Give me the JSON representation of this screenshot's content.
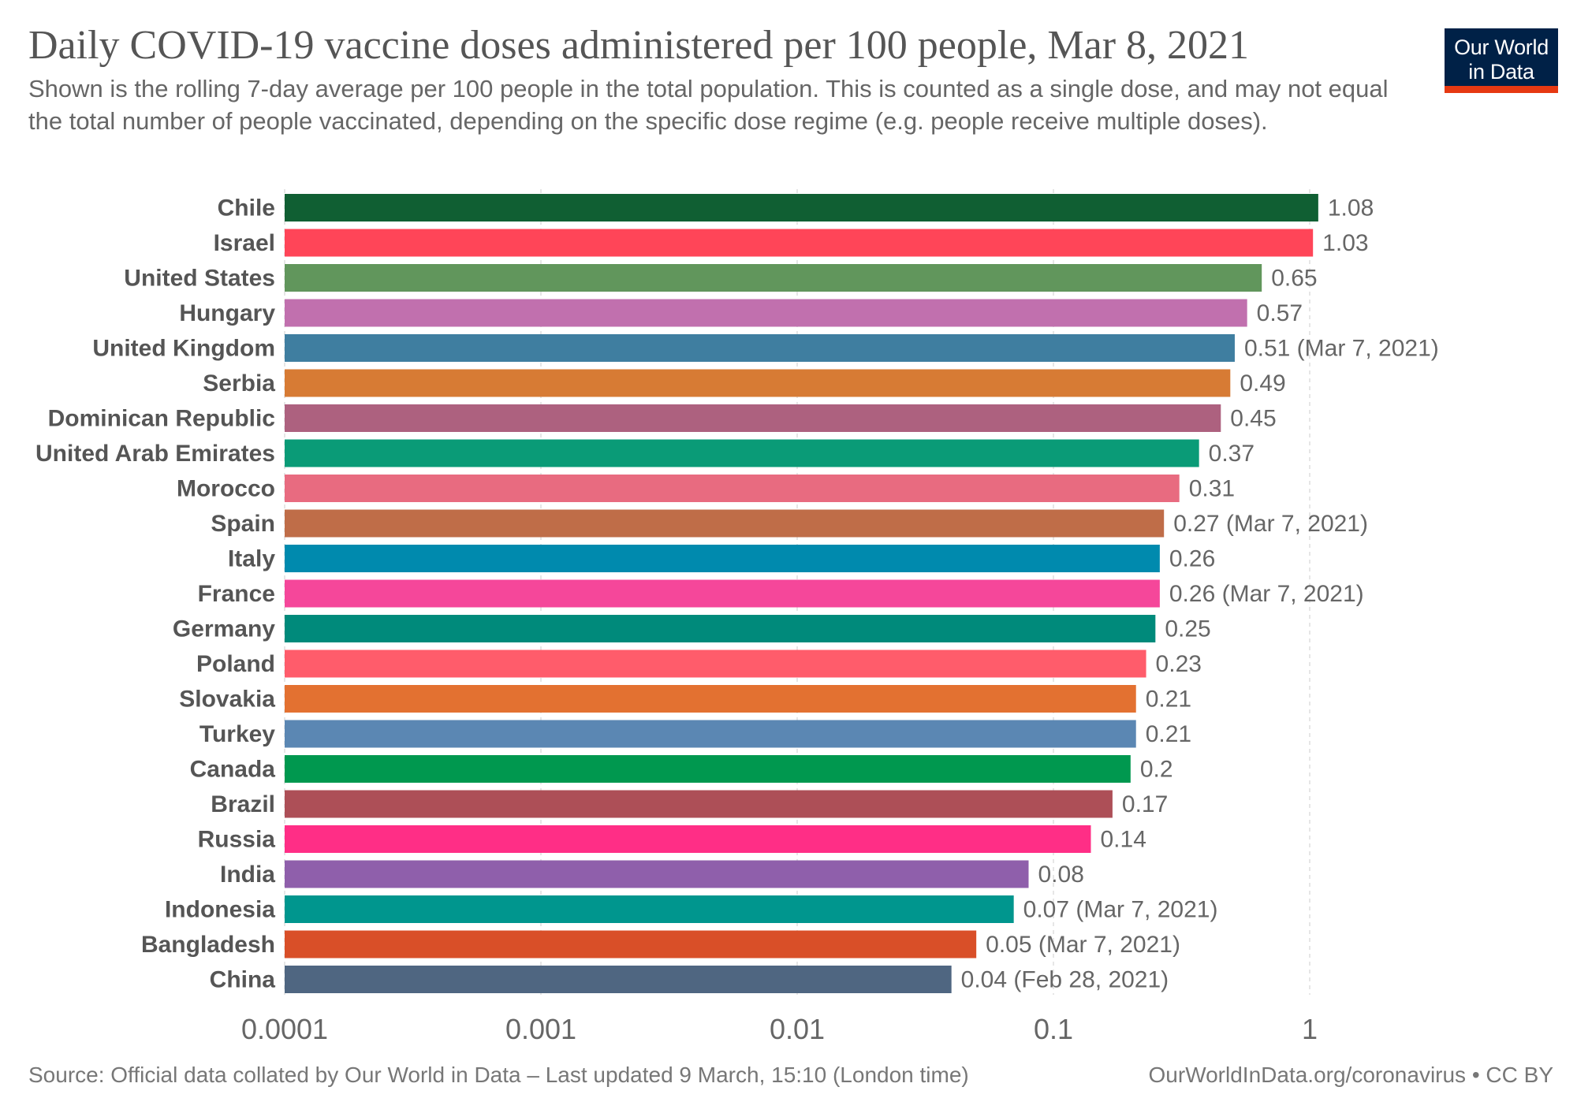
{
  "header": {
    "title": "Daily COVID-19 vaccine doses administered per 100 people, Mar 8, 2021",
    "subtitle": "Shown is the rolling 7-day average per 100 people in the total population. This is counted as a single dose, and may not equal the total number of people vaccinated, depending on the specific dose regime (e.g. people receive multiple doses).",
    "logo_line1": "Our World",
    "logo_line2": "in Data"
  },
  "footer": {
    "source": "Source: Official data collated by Our World in Data – Last updated 9 March, 15:10 (London time)",
    "link": "OurWorldInData.org/coronavirus • CC BY"
  },
  "colors": {
    "logo_background": "#002147",
    "logo_underline": "#e63912",
    "grid": "#dddddd"
  },
  "chart_data": {
    "type": "bar",
    "orientation": "horizontal",
    "x_scale": "log",
    "xlim": [
      0.0001,
      1.3
    ],
    "grid": true,
    "x_ticks": [
      {
        "value": 0.0001,
        "label": "0.0001"
      },
      {
        "value": 0.001,
        "label": "0.001"
      },
      {
        "value": 0.01,
        "label": "0.01"
      },
      {
        "value": 0.1,
        "label": "0.1"
      },
      {
        "value": 1,
        "label": "1"
      }
    ],
    "bars": [
      {
        "category": "Chile",
        "value": 1.08,
        "label": "1.08",
        "color": "#105f33"
      },
      {
        "category": "Israel",
        "value": 1.03,
        "label": "1.03",
        "color": "#ff4558"
      },
      {
        "category": "United States",
        "value": 0.65,
        "label": "0.65",
        "color": "#61965c"
      },
      {
        "category": "Hungary",
        "value": 0.57,
        "label": "0.57",
        "color": "#c170ae"
      },
      {
        "category": "United Kingdom",
        "value": 0.51,
        "label": "0.51 (Mar 7, 2021)",
        "color": "#3f7ea0"
      },
      {
        "category": "Serbia",
        "value": 0.49,
        "label": "0.49",
        "color": "#d77b34"
      },
      {
        "category": "Dominican Republic",
        "value": 0.45,
        "label": "0.45",
        "color": "#ad617f"
      },
      {
        "category": "United Arab Emirates",
        "value": 0.37,
        "label": "0.37",
        "color": "#0a9b77"
      },
      {
        "category": "Morocco",
        "value": 0.31,
        "label": "0.31",
        "color": "#e86b80"
      },
      {
        "category": "Spain",
        "value": 0.27,
        "label": "0.27 (Mar 7, 2021)",
        "color": "#bf6d48"
      },
      {
        "category": "Italy",
        "value": 0.26,
        "label": "0.26",
        "color": "#008aae"
      },
      {
        "category": "France",
        "value": 0.26,
        "label": "0.26 (Mar 7, 2021)",
        "color": "#f5479a"
      },
      {
        "category": "Germany",
        "value": 0.25,
        "label": "0.25",
        "color": "#008a7b"
      },
      {
        "category": "Poland",
        "value": 0.23,
        "label": "0.23",
        "color": "#ff5c6b"
      },
      {
        "category": "Slovakia",
        "value": 0.21,
        "label": "0.21",
        "color": "#e37131"
      },
      {
        "category": "Turkey",
        "value": 0.21,
        "label": "0.21",
        "color": "#5b87b3"
      },
      {
        "category": "Canada",
        "value": 0.2,
        "label": "0.2",
        "color": "#00984f"
      },
      {
        "category": "Brazil",
        "value": 0.17,
        "label": "0.17",
        "color": "#ad4f57"
      },
      {
        "category": "Russia",
        "value": 0.14,
        "label": "0.14",
        "color": "#ff2e86"
      },
      {
        "category": "India",
        "value": 0.08,
        "label": "0.08",
        "color": "#8f5fab"
      },
      {
        "category": "Indonesia",
        "value": 0.07,
        "label": "0.07 (Mar 7, 2021)",
        "color": "#00968e"
      },
      {
        "category": "Bangladesh",
        "value": 0.05,
        "label": "0.05 (Mar 7, 2021)",
        "color": "#d94f28"
      },
      {
        "category": "China",
        "value": 0.04,
        "label": "0.04 (Feb 28, 2021)",
        "color": "#4f6681"
      }
    ]
  }
}
